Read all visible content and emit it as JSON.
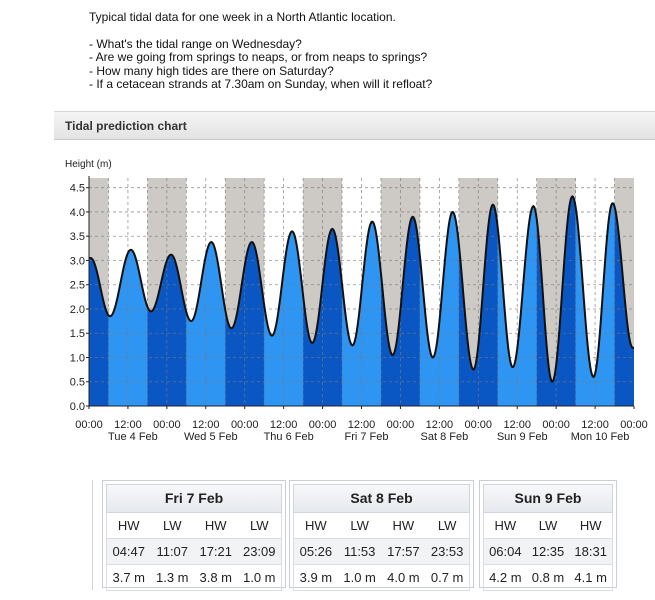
{
  "intro": {
    "title": "Typical tidal data for one week in a North Atlantic location.",
    "questions": [
      "- What's the tidal range on Wednesday?",
      "- Are we going from springs to neaps, or from neaps to springs?",
      "- How many high tides are there on Saturday?",
      "- If a cetacean strands at 7.30am on Sunday, when will it refloat?"
    ]
  },
  "panel": {
    "title": "Tidal prediction chart"
  },
  "chart_data": {
    "type": "area",
    "ylabel": "Height (m)",
    "ylim": [
      0,
      4.7
    ],
    "yticks": [
      "0.0",
      "0.5",
      "1.0",
      "1.5",
      "2.0",
      "2.5",
      "3.0",
      "3.5",
      "4.0",
      "4.5"
    ],
    "xticks": [
      "00:00",
      "12:00",
      "00:00",
      "12:00",
      "00:00",
      "12:00",
      "00:00",
      "12:00",
      "00:00",
      "12:00",
      "00:00",
      "12:00",
      "00:00",
      "12:00",
      "00:00"
    ],
    "days": [
      "Tue 4 Feb",
      "Wed 5 Feb",
      "Thu 6 Feb",
      "Fri 7 Feb",
      "Sat 8 Feb",
      "Sun 9 Feb",
      "Mon 10 Feb"
    ],
    "x_range_hours": [
      0,
      168
    ],
    "grid": true,
    "night_shading": true,
    "colors": {
      "night": "#cdcac5",
      "water_dark": "#0a57c4",
      "water_light": "#2f95f2",
      "curve": "#111111"
    },
    "extrema_hours": [
      0.5,
      6.5,
      12.9,
      19.1,
      25.3,
      31.5,
      37.7,
      43.9,
      50.2,
      56.4,
      62.6,
      68.8,
      75.0,
      81.2,
      87.3,
      93.6,
      99.8,
      106.0,
      112.1,
      118.5,
      124.5,
      130.6,
      137.0,
      142.8,
      149.0,
      155.5,
      161.4,
      167.6
    ],
    "extrema_heights": [
      3.05,
      1.85,
      3.22,
      1.95,
      3.12,
      1.75,
      3.38,
      1.6,
      3.38,
      1.45,
      3.6,
      1.3,
      3.65,
      1.25,
      3.8,
      1.05,
      3.9,
      1.0,
      4.0,
      0.75,
      4.15,
      0.8,
      4.12,
      0.5,
      4.32,
      0.6,
      4.18,
      1.2
    ]
  },
  "tide_tables": [
    {
      "day": "Fri 7 Feb",
      "headers": [
        "HW",
        "LW",
        "HW",
        "LW"
      ],
      "times": [
        "04:47",
        "11:07",
        "17:21",
        "23:09"
      ],
      "heights": [
        "3.7 m",
        "1.3 m",
        "3.8 m",
        "1.0 m"
      ]
    },
    {
      "day": "Sat 8 Feb",
      "headers": [
        "HW",
        "LW",
        "HW",
        "LW"
      ],
      "times": [
        "05:26",
        "11:53",
        "17:57",
        "23:53"
      ],
      "heights": [
        "3.9 m",
        "1.0 m",
        "4.0 m",
        "0.7 m"
      ]
    },
    {
      "day": "Sun 9 Feb",
      "headers": [
        "HW",
        "LW",
        "HW"
      ],
      "times": [
        "06:04",
        "12:35",
        "18:31"
      ],
      "heights": [
        "4.2 m",
        "0.8 m",
        "4.1 m"
      ]
    }
  ]
}
